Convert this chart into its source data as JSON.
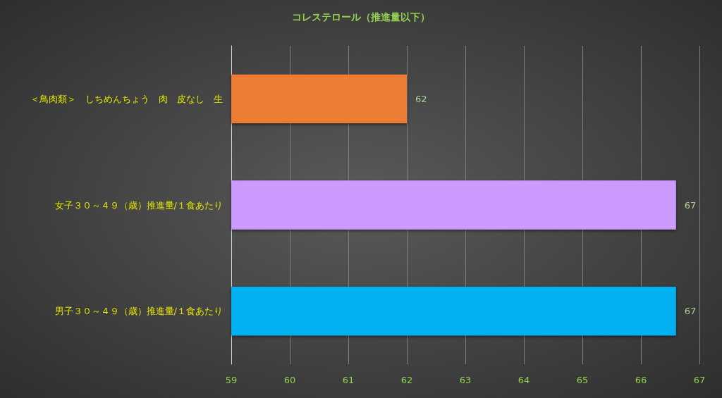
{
  "chart_data": {
    "type": "bar",
    "orientation": "horizontal",
    "title": "コレステロール（推進量以下）",
    "categories": [
      "＜鳥肉類＞　しちめんちょう　肉　皮なし　生",
      "女子３０～４９（歳）推進量/１食あたり",
      "男子３０～４９（歳）推進量/１食あたり"
    ],
    "values": [
      62,
      66.6,
      66.6
    ],
    "value_labels": [
      "62",
      "67",
      "67"
    ],
    "colors": [
      "#ed7d31",
      "#cc99ff",
      "#00b0f0"
    ],
    "xlim": [
      59,
      67
    ],
    "xticks": [
      59,
      60,
      61,
      62,
      63,
      64,
      65,
      66,
      67
    ],
    "grid": "x"
  }
}
